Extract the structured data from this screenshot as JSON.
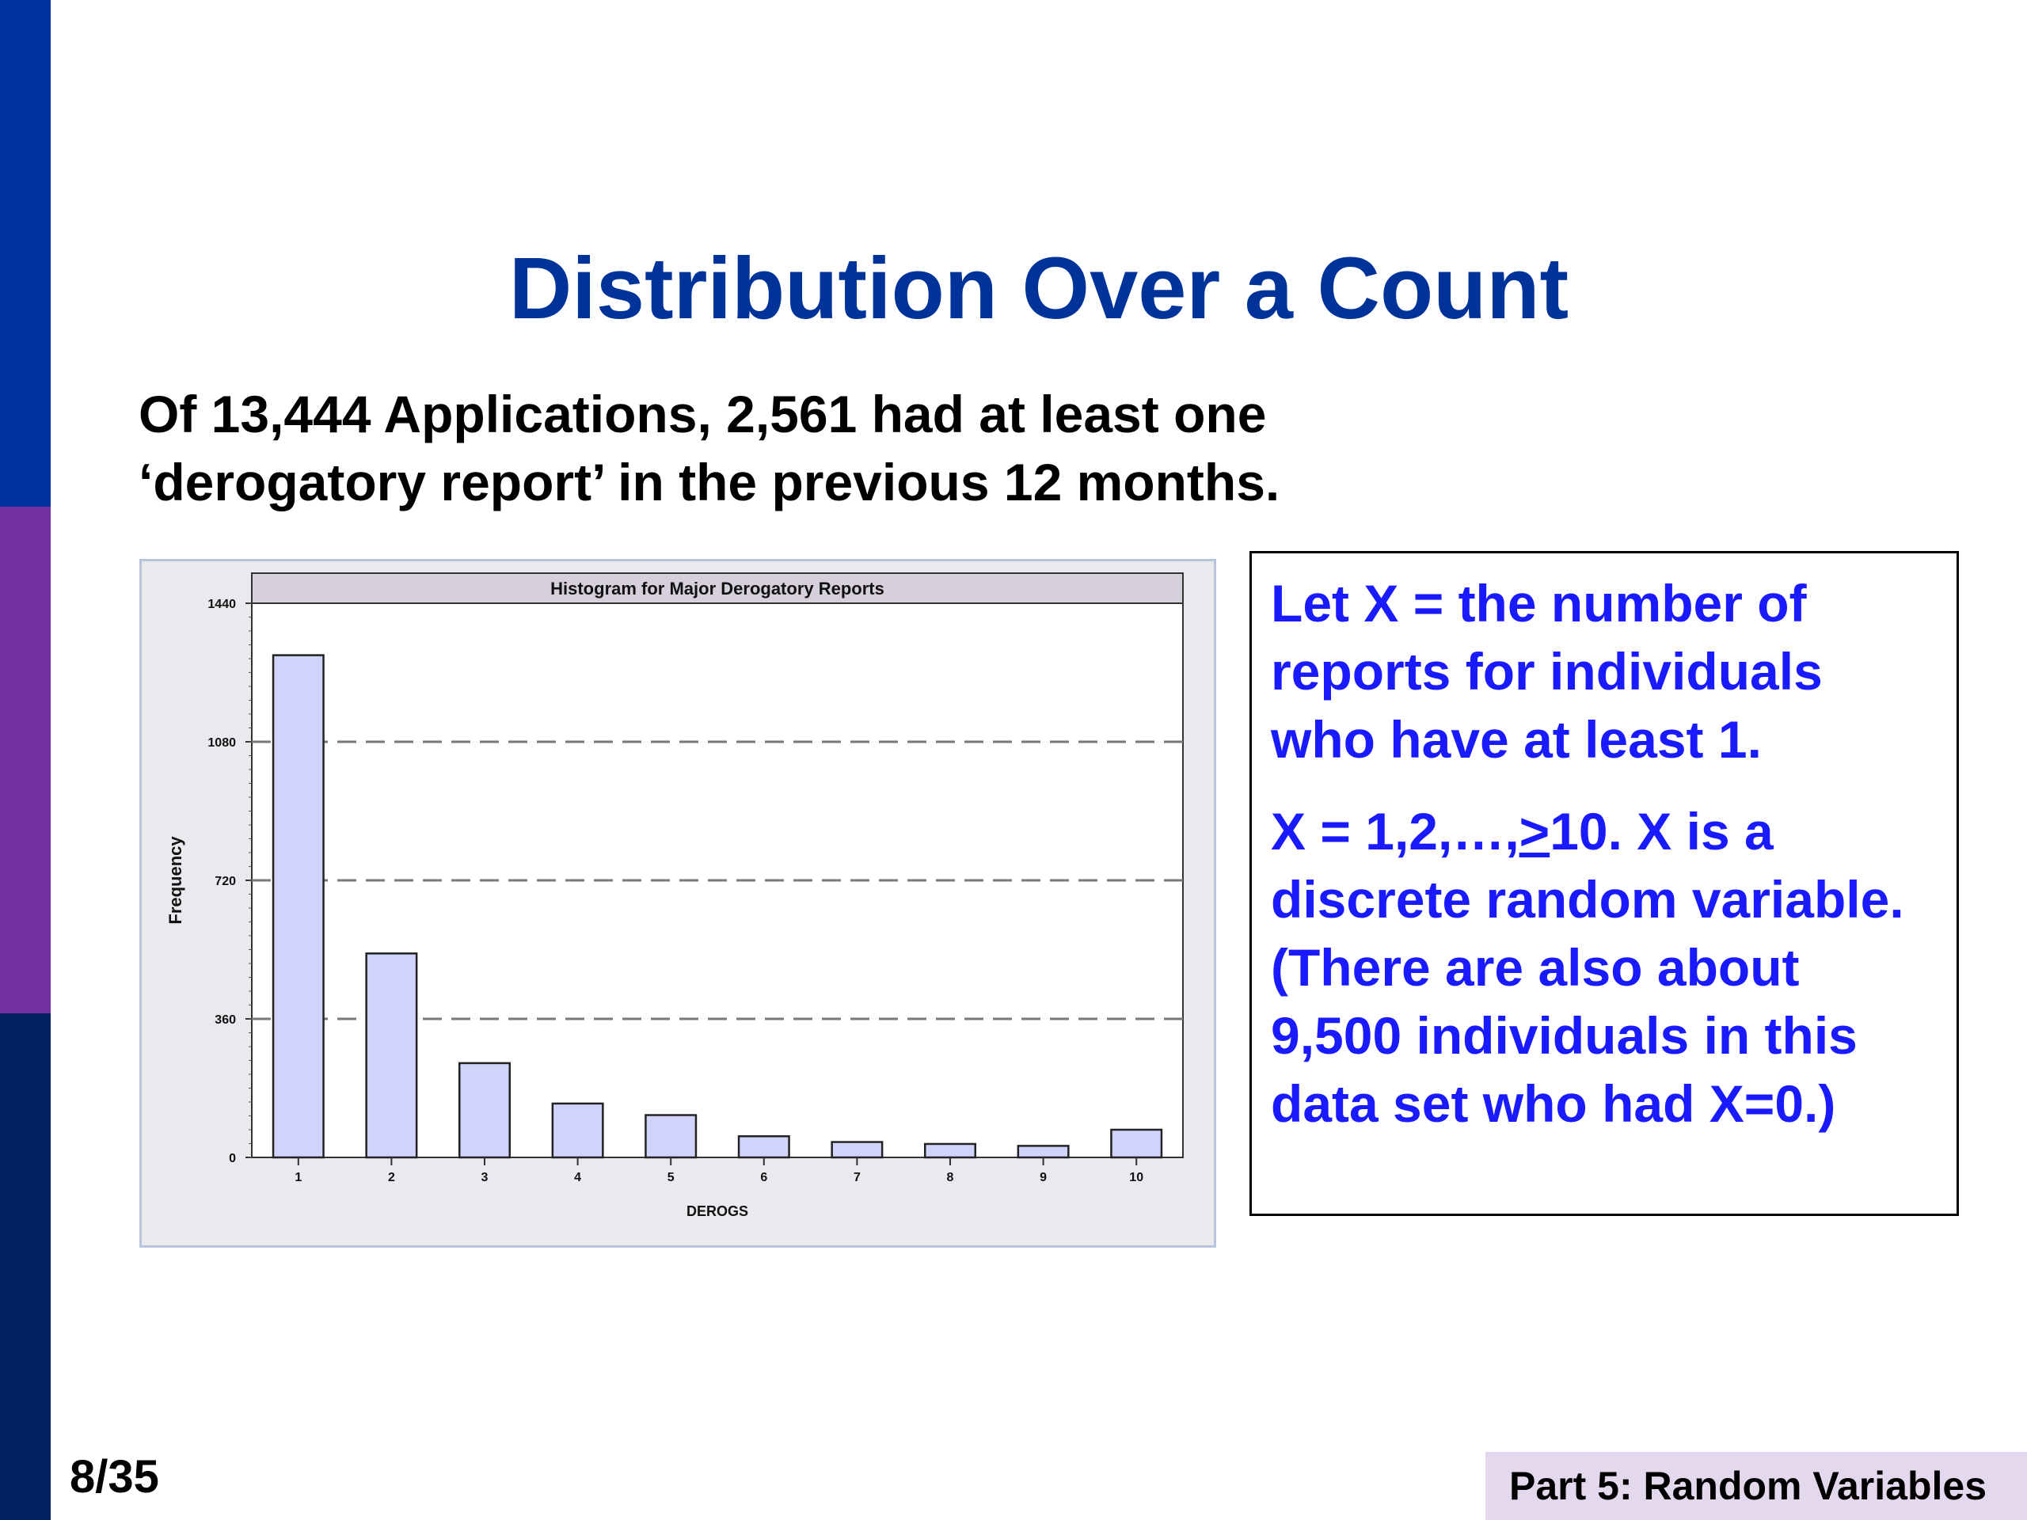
{
  "slide": {
    "title": "Distribution Over a Count",
    "subtitle_line1": "Of 13,444 Applications, 2,561 had at least one",
    "subtitle_line2": "‘derogatory report’ in the previous 12 months.",
    "page_number": "8/35",
    "footer": "Part 5: Random Variables"
  },
  "textbox": {
    "para1": "Let X = the number of reports for individuals who have at least 1.",
    "para2_pre": "X = 1,2,…,",
    "para2_ge": ">",
    "para2_post": "10.  X is a discrete random variable.  (There are also about 9,500 individuals in this data set who had X=0.)"
  },
  "colors": {
    "title": "#003399",
    "textbox_text": "#1a1aff",
    "bar_fill": "#d0d4fa",
    "bar_stroke": "#222222"
  },
  "chart_data": {
    "type": "bar",
    "title": "Histogram for Major Derogatory Reports",
    "xlabel": "DEROGS",
    "ylabel": "Frequency",
    "categories": [
      "1",
      "2",
      "3",
      "4",
      "5",
      "6",
      "7",
      "8",
      "9",
      "10"
    ],
    "values": [
      1305,
      530,
      245,
      140,
      110,
      55,
      40,
      35,
      30,
      72
    ],
    "ylim": [
      0,
      1440
    ],
    "yticks": [
      "0",
      "360",
      "720",
      "1080",
      "1440"
    ],
    "grid": "dashed horizontal"
  }
}
